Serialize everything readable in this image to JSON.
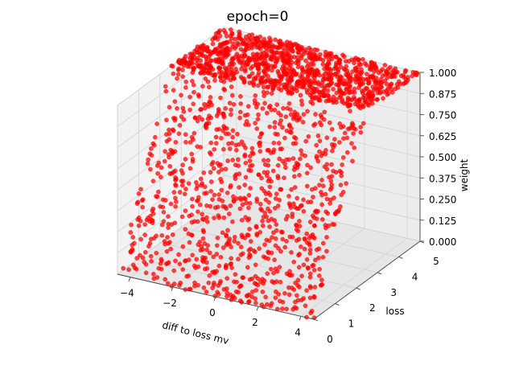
{
  "chart_data": {
    "type": "scatter",
    "projection": "3d",
    "title": "epoch=0",
    "xlabel": "diff to loss mv",
    "ylabel": "loss",
    "zlabel": "weight",
    "xlim": [
      -4.6,
      4.6
    ],
    "ylim": [
      0,
      5
    ],
    "zlim": [
      0,
      1
    ],
    "x_ticks": [
      "−4",
      "−2",
      "0",
      "2",
      "4"
    ],
    "x_tick_values": [
      -4,
      -2,
      0,
      2,
      4
    ],
    "y_ticks": [
      "0",
      "1",
      "2",
      "3",
      "4",
      "5"
    ],
    "y_tick_values": [
      0,
      1,
      2,
      3,
      4,
      5
    ],
    "z_ticks": [
      "0.000",
      "0.125",
      "0.250",
      "0.375",
      "0.500",
      "0.625",
      "0.750",
      "0.875",
      "1.000"
    ],
    "z_tick_values": [
      0,
      0.125,
      0.25,
      0.375,
      0.5,
      0.625,
      0.75,
      0.875,
      1.0
    ],
    "marker_color": "#ff0000",
    "marker": "circle",
    "grid": true,
    "points_note": "approximately uniform cloud over x∈[-4.6,4.6], loss∈[0,5]; weight rises with loss and saturates at 1.0",
    "weight_relation": "weight = min(1, loss / 2.5)",
    "approx_point_count": 2000
  }
}
